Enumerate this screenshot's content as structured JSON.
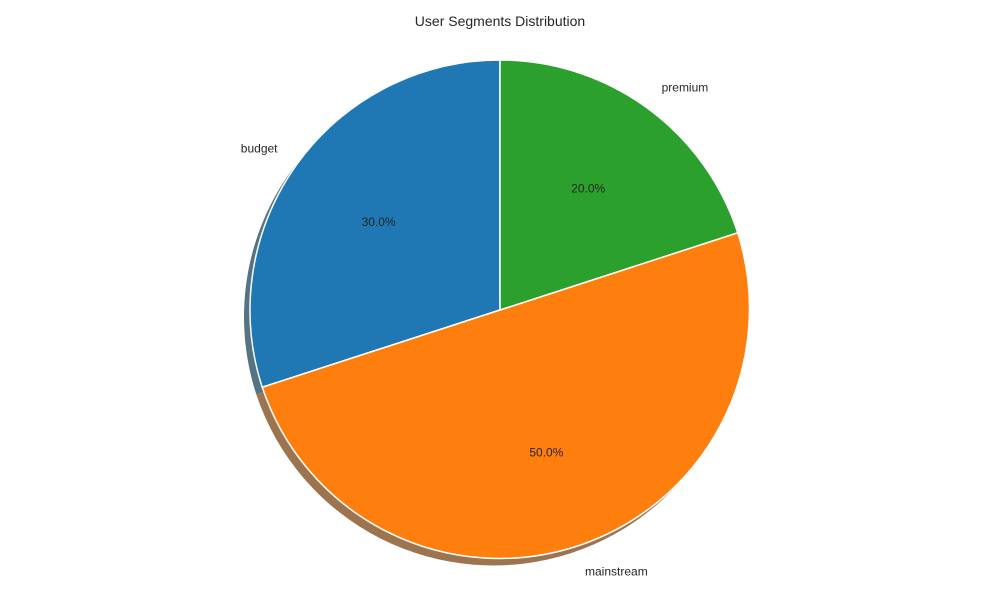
{
  "chart_data": {
    "type": "pie",
    "title": "User Segments Distribution",
    "start_angle_deg": 90,
    "direction": "counterclockwise",
    "shadow": true,
    "slices": [
      {
        "label": "budget",
        "value": 30.0,
        "pct_label": "30.0%",
        "color": "#1f77b4"
      },
      {
        "label": "mainstream",
        "value": 50.0,
        "pct_label": "50.0%",
        "color": "#ff7f0e"
      },
      {
        "label": "premium",
        "value": 20.0,
        "pct_label": "20.0%",
        "color": "#2ca02c"
      }
    ]
  }
}
